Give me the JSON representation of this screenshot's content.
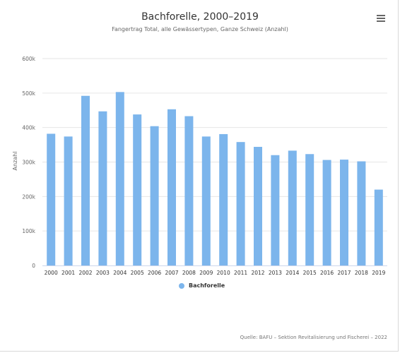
{
  "chart_data": {
    "type": "bar",
    "title": "Bachforelle, 2000–2019",
    "subtitle": "Fangertrag Total, alle Gewässertypen, Ganze Schweiz (Anzahl)",
    "xlabel": "",
    "ylabel": "Anzahl",
    "ylim": [
      0,
      600000
    ],
    "yticks": [
      0,
      100000,
      200000,
      300000,
      400000,
      500000,
      600000
    ],
    "ytick_labels": [
      "0",
      "100k",
      "200k",
      "300k",
      "400k",
      "500k",
      "600k"
    ],
    "grid": true,
    "legend_position": "bottom-center",
    "categories": [
      "2000",
      "2001",
      "2002",
      "2003",
      "2004",
      "2005",
      "2006",
      "2007",
      "2008",
      "2009",
      "2010",
      "2011",
      "2012",
      "2013",
      "2014",
      "2015",
      "2016",
      "2017",
      "2018",
      "2019"
    ],
    "series": [
      {
        "name": "Bachforelle",
        "color": "#7cb5ec",
        "values": [
          382000,
          374000,
          492000,
          447000,
          503000,
          438000,
          404000,
          453000,
          433000,
          374000,
          381000,
          358000,
          344000,
          320000,
          333000,
          323000,
          306000,
          307000,
          302000,
          220000
        ]
      }
    ]
  },
  "menu": {
    "icon": "hamburger-menu-icon"
  },
  "credits": "Quelle: BAFU – Sektion Revitalisierung und Fischerei – 2022"
}
